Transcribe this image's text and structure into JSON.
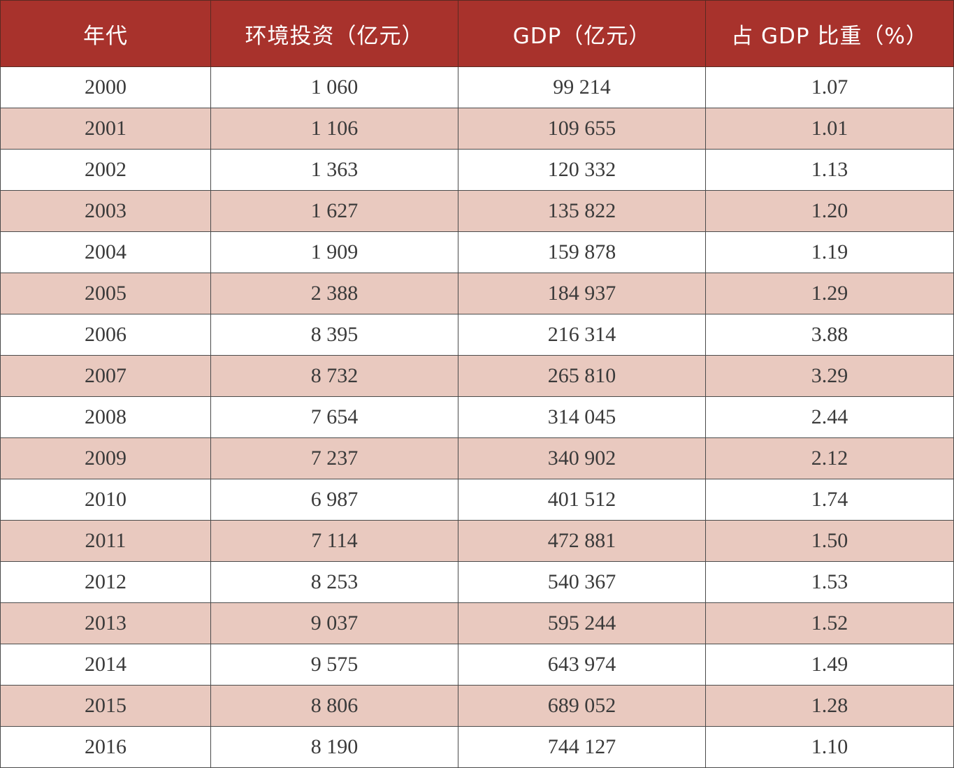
{
  "colors": {
    "header_background": "#a8322c",
    "header_text": "#ffffff",
    "stripe_row": "#e9c9bf",
    "plain_row": "#ffffff"
  },
  "table": {
    "headers": [
      "年代",
      "环境投资（亿元）",
      "GDP（亿元）",
      "占 GDP 比重（%）"
    ],
    "rows": [
      [
        "2000",
        "1 060",
        "99 214",
        "1.07"
      ],
      [
        "2001",
        "1 106",
        "109 655",
        "1.01"
      ],
      [
        "2002",
        "1 363",
        "120 332",
        "1.13"
      ],
      [
        "2003",
        "1 627",
        "135 822",
        "1.20"
      ],
      [
        "2004",
        "1 909",
        "159 878",
        "1.19"
      ],
      [
        "2005",
        "2 388",
        "184 937",
        "1.29"
      ],
      [
        "2006",
        "8 395",
        "216 314",
        "3.88"
      ],
      [
        "2007",
        "8 732",
        "265 810",
        "3.29"
      ],
      [
        "2008",
        "7 654",
        "314 045",
        "2.44"
      ],
      [
        "2009",
        "7 237",
        "340 902",
        "2.12"
      ],
      [
        "2010",
        "6 987",
        "401 512",
        "1.74"
      ],
      [
        "2011",
        "7 114",
        "472 881",
        "1.50"
      ],
      [
        "2012",
        "8 253",
        "540 367",
        "1.53"
      ],
      [
        "2013",
        "9 037",
        "595 244",
        "1.52"
      ],
      [
        "2014",
        "9 575",
        "643 974",
        "1.49"
      ],
      [
        "2015",
        "8 806",
        "689 052",
        "1.28"
      ],
      [
        "2016",
        "8 190",
        "744 127",
        "1.10"
      ]
    ]
  }
}
